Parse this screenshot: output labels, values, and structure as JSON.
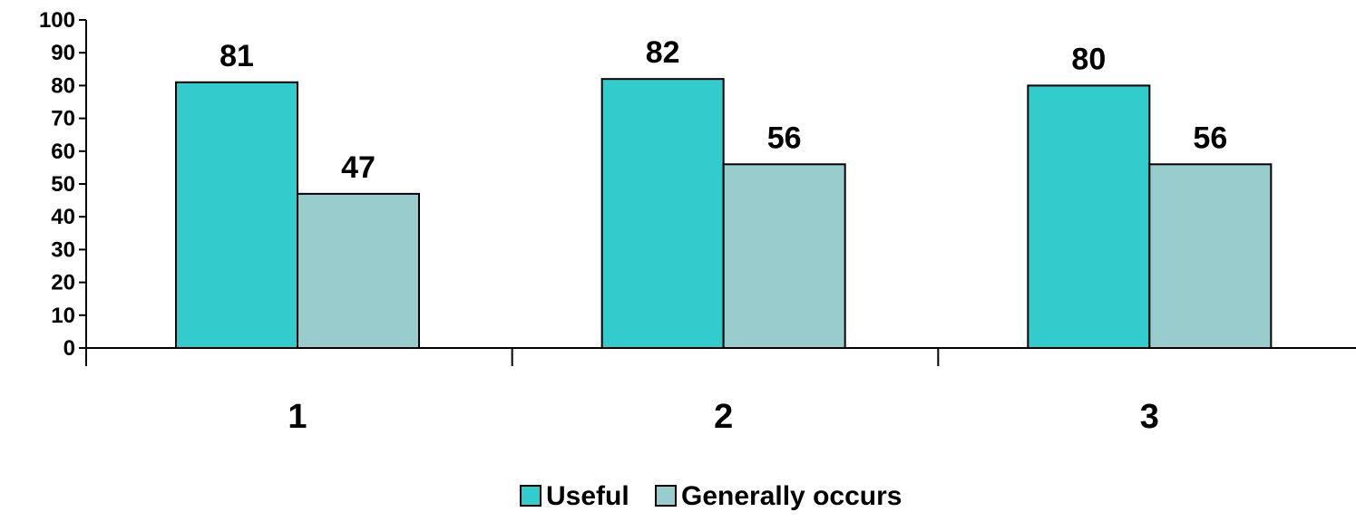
{
  "chart_data": {
    "type": "bar",
    "categories": [
      "1",
      "2",
      "3"
    ],
    "series": [
      {
        "name": "Useful",
        "values": [
          81,
          82,
          80
        ],
        "color": "#33CCCC"
      },
      {
        "name": "Generally occurs",
        "values": [
          47,
          56,
          56
        ],
        "color": "#99CCCC"
      }
    ],
    "ylim": [
      0,
      100
    ],
    "yticks": [
      "0",
      "10",
      "20",
      "30",
      "40",
      "50",
      "60",
      "70",
      "80",
      "90",
      "100"
    ],
    "title": "",
    "xlabel": "",
    "ylabel": "",
    "grid": false,
    "legend": "bottom-center"
  }
}
